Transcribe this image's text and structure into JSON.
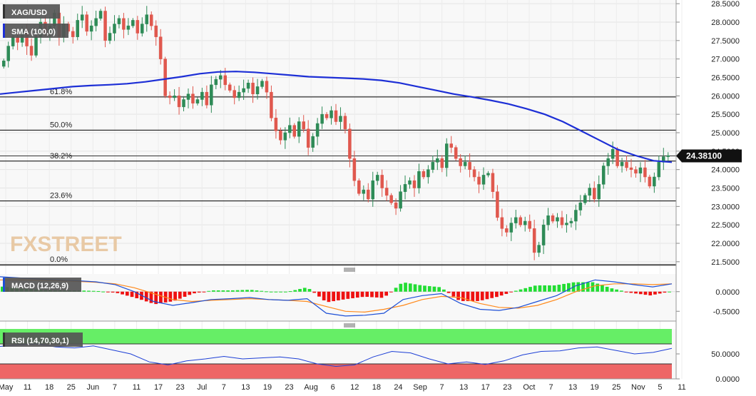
{
  "symbol": "XAG/USD",
  "indicators": {
    "sma_label": "SMA (100,0)",
    "macd_label": "MACD (12,26,9)",
    "rsi_label": "RSI (14,70,30,1)"
  },
  "watermark": "FXSTREET",
  "current_price": "24.38100",
  "colors": {
    "up": "#2e8b57",
    "down": "#e0584e",
    "sma": "#1d2fd6",
    "macd_line": "#1d4fd6",
    "signal_line": "#ff8a1c",
    "hist_up": "#22dd33",
    "hist_down": "#ee1111",
    "rsi_over": "#66ee66",
    "rsi_under": "#ee6666",
    "fib": "#000000"
  },
  "chart_data": {
    "type": "candlestick",
    "x_axis": [
      "May",
      "11",
      "18",
      "25",
      "Jun",
      "7",
      "11",
      "17",
      "23",
      "Jul",
      "7",
      "13",
      "19",
      "23",
      "Aug",
      "6",
      "12",
      "18",
      "24",
      "Sep",
      "7",
      "13",
      "17",
      "23",
      "Oct",
      "7",
      "13",
      "19",
      "25",
      "Nov",
      "5",
      "11"
    ],
    "price_ticks": [
      "28.5000",
      "28.0000",
      "27.5000",
      "27.0000",
      "26.5000",
      "26.0000",
      "25.5000",
      "25.0000",
      "24.5000",
      "24.0000",
      "23.5000",
      "23.0000",
      "22.5000",
      "22.0000",
      "21.5000"
    ],
    "ylim": [
      21.4,
      28.6
    ],
    "fib_levels": [
      {
        "label": "61.8%",
        "value": 25.97
      },
      {
        "label": "50.0%",
        "value": 25.07
      },
      {
        "label": "38.2%",
        "value": 24.23
      },
      {
        "label": "23.6%",
        "value": 23.15
      },
      {
        "label": "0.0%",
        "value": 21.42
      }
    ],
    "current_line": 24.37,
    "closes": [
      26.95,
      27.35,
      27.6,
      27.45,
      27.8,
      27.35,
      27.1,
      27.6,
      28.0,
      27.7,
      27.9,
      28.25,
      27.6,
      27.95,
      27.75,
      27.6,
      28.05,
      28.2,
      27.75,
      27.9,
      28.1,
      28.3,
      27.5,
      27.7,
      27.95,
      28.1,
      27.8,
      27.9,
      28.05,
      27.7,
      27.95,
      28.2,
      27.9,
      27.6,
      27.0,
      26.0,
      25.95,
      26.0,
      25.7,
      25.9,
      26.05,
      25.8,
      25.9,
      26.1,
      25.75,
      26.3,
      26.45,
      26.55,
      26.3,
      26.15,
      25.95,
      26.1,
      26.2,
      26.35,
      26.05,
      26.25,
      26.4,
      26.1,
      25.4,
      25.05,
      24.8,
      25.0,
      25.2,
      24.9,
      25.3,
      25.1,
      24.6,
      24.9,
      25.25,
      25.5,
      25.4,
      25.6,
      25.3,
      25.45,
      25.1,
      24.3,
      23.7,
      23.35,
      23.45,
      23.2,
      23.7,
      23.85,
      23.5,
      23.3,
      23.1,
      22.95,
      23.4,
      23.6,
      23.7,
      23.5,
      23.95,
      23.8,
      24.0,
      24.2,
      24.3,
      24.05,
      24.7,
      24.6,
      24.3,
      24.1,
      24.2,
      24.0,
      23.8,
      23.6,
      23.85,
      23.9,
      23.4,
      22.7,
      22.4,
      22.3,
      22.55,
      22.7,
      22.5,
      22.6,
      22.4,
      21.75,
      21.95,
      22.5,
      22.75,
      22.6,
      22.7,
      22.5,
      22.55,
      22.6,
      22.9,
      23.1,
      23.3,
      23.5,
      23.2,
      23.6,
      24.1,
      24.3,
      24.55,
      24.1,
      24.2,
      24.05,
      24.0,
      23.9,
      24.05,
      23.8,
      23.55,
      23.8,
      24.2,
      24.35,
      24.38
    ],
    "sma_100": [
      26.05,
      26.1,
      26.15,
      26.2,
      26.25,
      26.28,
      26.3,
      26.33,
      26.38,
      26.45,
      26.52,
      26.6,
      26.65,
      26.66,
      26.64,
      26.6,
      26.56,
      26.52,
      26.5,
      26.48,
      26.46,
      26.42,
      26.35,
      26.25,
      26.15,
      26.05,
      25.97,
      25.88,
      25.78,
      25.65,
      25.5,
      25.3,
      25.05,
      24.8,
      24.55,
      24.38,
      24.24,
      24.2
    ],
    "macd": {
      "ylim": [
        -0.75,
        0.45
      ],
      "y_ticks": [
        "0.0000",
        "-0.5000"
      ],
      "line": [
        0.38,
        0.35,
        0.32,
        0.3,
        0.28,
        0.25,
        0.18,
        0.0,
        -0.25,
        -0.35,
        -0.28,
        -0.2,
        -0.18,
        -0.15,
        -0.2,
        -0.22,
        -0.18,
        -0.55,
        -0.62,
        -0.6,
        -0.55,
        -0.2,
        -0.1,
        -0.05,
        -0.3,
        -0.45,
        -0.48,
        -0.4,
        -0.25,
        -0.1,
        0.15,
        0.3,
        0.25,
        0.18,
        0.12,
        0.2
      ],
      "signal": [
        0.3,
        0.3,
        0.29,
        0.28,
        0.26,
        0.24,
        0.2,
        0.1,
        -0.05,
        -0.2,
        -0.25,
        -0.22,
        -0.2,
        -0.18,
        -0.2,
        -0.22,
        -0.25,
        -0.38,
        -0.5,
        -0.52,
        -0.45,
        -0.35,
        -0.2,
        -0.12,
        -0.15,
        -0.3,
        -0.4,
        -0.42,
        -0.35,
        -0.2,
        0.0,
        0.15,
        0.2,
        0.2,
        0.18,
        0.2
      ]
    },
    "rsi": {
      "ylim": [
        0,
        100
      ],
      "levels": [
        70,
        30
      ],
      "y_ticks": [
        "50.0000",
        "0.0000"
      ],
      "line": [
        65,
        68,
        70,
        64,
        62,
        66,
        58,
        50,
        34,
        28,
        36,
        40,
        45,
        40,
        42,
        44,
        40,
        30,
        25,
        28,
        44,
        55,
        52,
        40,
        30,
        34,
        29,
        36,
        48,
        55,
        56,
        62,
        64,
        57,
        50,
        53,
        61
      ]
    }
  }
}
